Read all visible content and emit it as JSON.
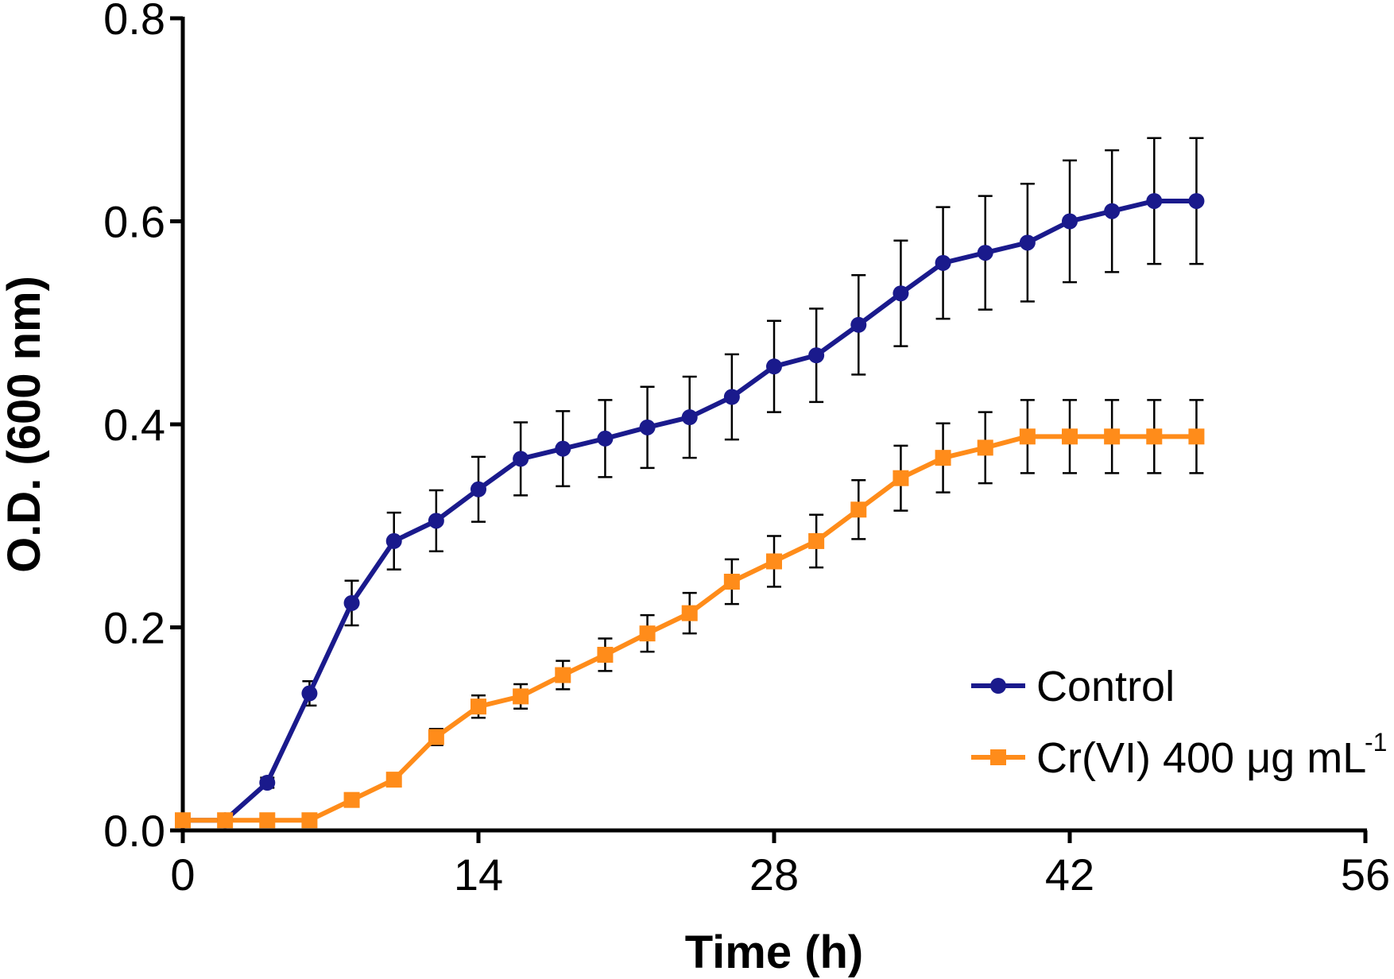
{
  "chart_data": {
    "type": "line",
    "title": "",
    "xlabel": "Time (h)",
    "ylabel": "O.D. (600 nm)",
    "xlim": [
      0,
      56
    ],
    "ylim": [
      0,
      0.8
    ],
    "x_ticks": [
      "0",
      "14",
      "28",
      "42",
      "56"
    ],
    "y_ticks": [
      "0.0",
      "0.2",
      "0.4",
      "0.6",
      "0.8"
    ],
    "x_tick_values": [
      0,
      14,
      28,
      42,
      56
    ],
    "y_tick_values": [
      0,
      0.2,
      0.4,
      0.6,
      0.8
    ],
    "grid": false,
    "legend_position": "bottom-right",
    "x": [
      0,
      2,
      4,
      6,
      8,
      10,
      12,
      14,
      16,
      18,
      20,
      22,
      24,
      26,
      28,
      30,
      32,
      34,
      36,
      38,
      40,
      42,
      44,
      46,
      48
    ],
    "series": [
      {
        "name": "Control",
        "color": "#1a1a8c",
        "marker": "circle",
        "values": [
          0.01,
          0.01,
          0.047,
          0.135,
          0.224,
          0.285,
          0.305,
          0.336,
          0.366,
          0.376,
          0.386,
          0.397,
          0.407,
          0.427,
          0.457,
          0.468,
          0.498,
          0.529,
          0.559,
          0.569,
          0.579,
          0.6,
          0.61,
          0.62,
          0.62
        ],
        "errors": [
          0.003,
          0.003,
          0.005,
          0.012,
          0.022,
          0.028,
          0.03,
          0.032,
          0.036,
          0.037,
          0.038,
          0.04,
          0.04,
          0.042,
          0.045,
          0.046,
          0.049,
          0.052,
          0.055,
          0.056,
          0.058,
          0.06,
          0.06,
          0.062,
          0.062
        ]
      },
      {
        "name": "Cr(VI) 400 μg mL",
        "name_superscript": "-1",
        "color": "#ff8c1a",
        "marker": "square",
        "values": [
          0.01,
          0.01,
          0.01,
          0.01,
          0.03,
          0.05,
          0.092,
          0.122,
          0.132,
          0.153,
          0.173,
          0.194,
          0.214,
          0.245,
          0.265,
          0.285,
          0.316,
          0.347,
          0.367,
          0.377,
          0.388,
          0.388,
          0.388,
          0.388,
          0.388
        ],
        "errors": [
          0.002,
          0.002,
          0.002,
          0.002,
          0.004,
          0.005,
          0.008,
          0.011,
          0.012,
          0.014,
          0.016,
          0.018,
          0.02,
          0.022,
          0.025,
          0.026,
          0.029,
          0.032,
          0.034,
          0.035,
          0.036,
          0.036,
          0.036,
          0.036,
          0.036
        ]
      }
    ]
  }
}
